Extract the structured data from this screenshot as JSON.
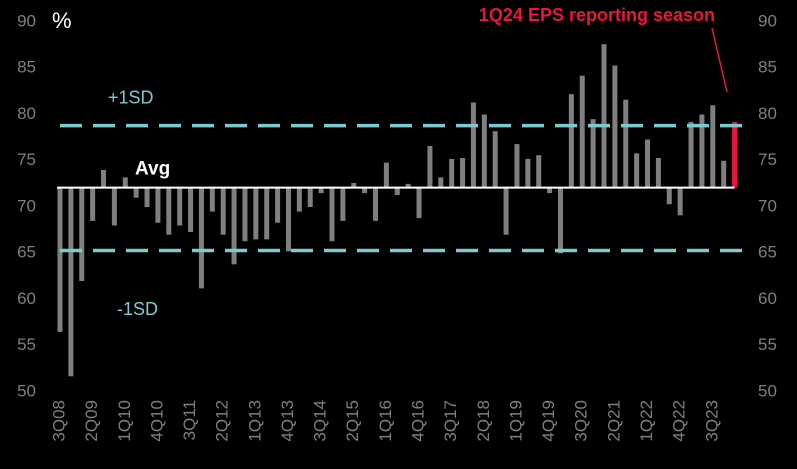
{
  "chart_data": {
    "type": "bar",
    "unit_label": "%",
    "annotation": "1Q24 EPS reporting season",
    "annotation_color": "#e8163c",
    "categories": [
      "3Q08",
      null,
      null,
      "2Q09",
      null,
      null,
      "1Q10",
      null,
      null,
      "4Q10",
      null,
      null,
      "3Q11",
      null,
      null,
      "2Q12",
      null,
      null,
      "1Q13",
      null,
      null,
      "4Q13",
      null,
      null,
      "3Q14",
      null,
      null,
      "2Q15",
      null,
      null,
      "1Q16",
      null,
      null,
      "4Q16",
      null,
      null,
      "3Q17",
      null,
      null,
      "2Q18",
      null,
      null,
      "1Q19",
      null,
      null,
      "4Q19",
      null,
      null,
      "3Q20",
      null,
      null,
      "2Q21",
      null,
      null,
      "1Q22",
      null,
      null,
      "4Q22",
      null,
      null,
      "3Q23",
      null,
      null
    ],
    "values": [
      56.5,
      51.7,
      62,
      68.5,
      74,
      68,
      73.2,
      71,
      70,
      68.3,
      67,
      68,
      67.3,
      61.2,
      69.5,
      67,
      63.8,
      66.3,
      66.5,
      66.5,
      68.3,
      65.2,
      69.5,
      70,
      71.5,
      66.3,
      68.5,
      72.6,
      71.5,
      68.5,
      74.8,
      71.3,
      72.5,
      68.8,
      76.6,
      73.2,
      75.2,
      75.3,
      81.3,
      80,
      78.2,
      67,
      76.8,
      75.2,
      75.6,
      71.5,
      65,
      82.2,
      84.2,
      79.5,
      87.6,
      85.3,
      81.6,
      75.8,
      77.3,
      75.3,
      70.3,
      69.1,
      79.2,
      80,
      81,
      75,
      79.2
    ],
    "color": "#7f7f7f",
    "highlight_color": "#e8163c",
    "avg": {
      "value": 72.1,
      "label": "Avg"
    },
    "bands": [
      {
        "value": 78.8,
        "label": "+1SD"
      },
      {
        "value": 65.3,
        "label": "-1SD"
      }
    ],
    "band_color": "#7ec8d0",
    "ylim": [
      50,
      90
    ],
    "yticks": [
      50,
      55,
      60,
      65,
      70,
      75,
      80,
      85,
      90
    ],
    "y2lim": [
      50,
      90
    ],
    "y2ticks": [
      50,
      55,
      60,
      65,
      70,
      75,
      80,
      85,
      90
    ]
  }
}
